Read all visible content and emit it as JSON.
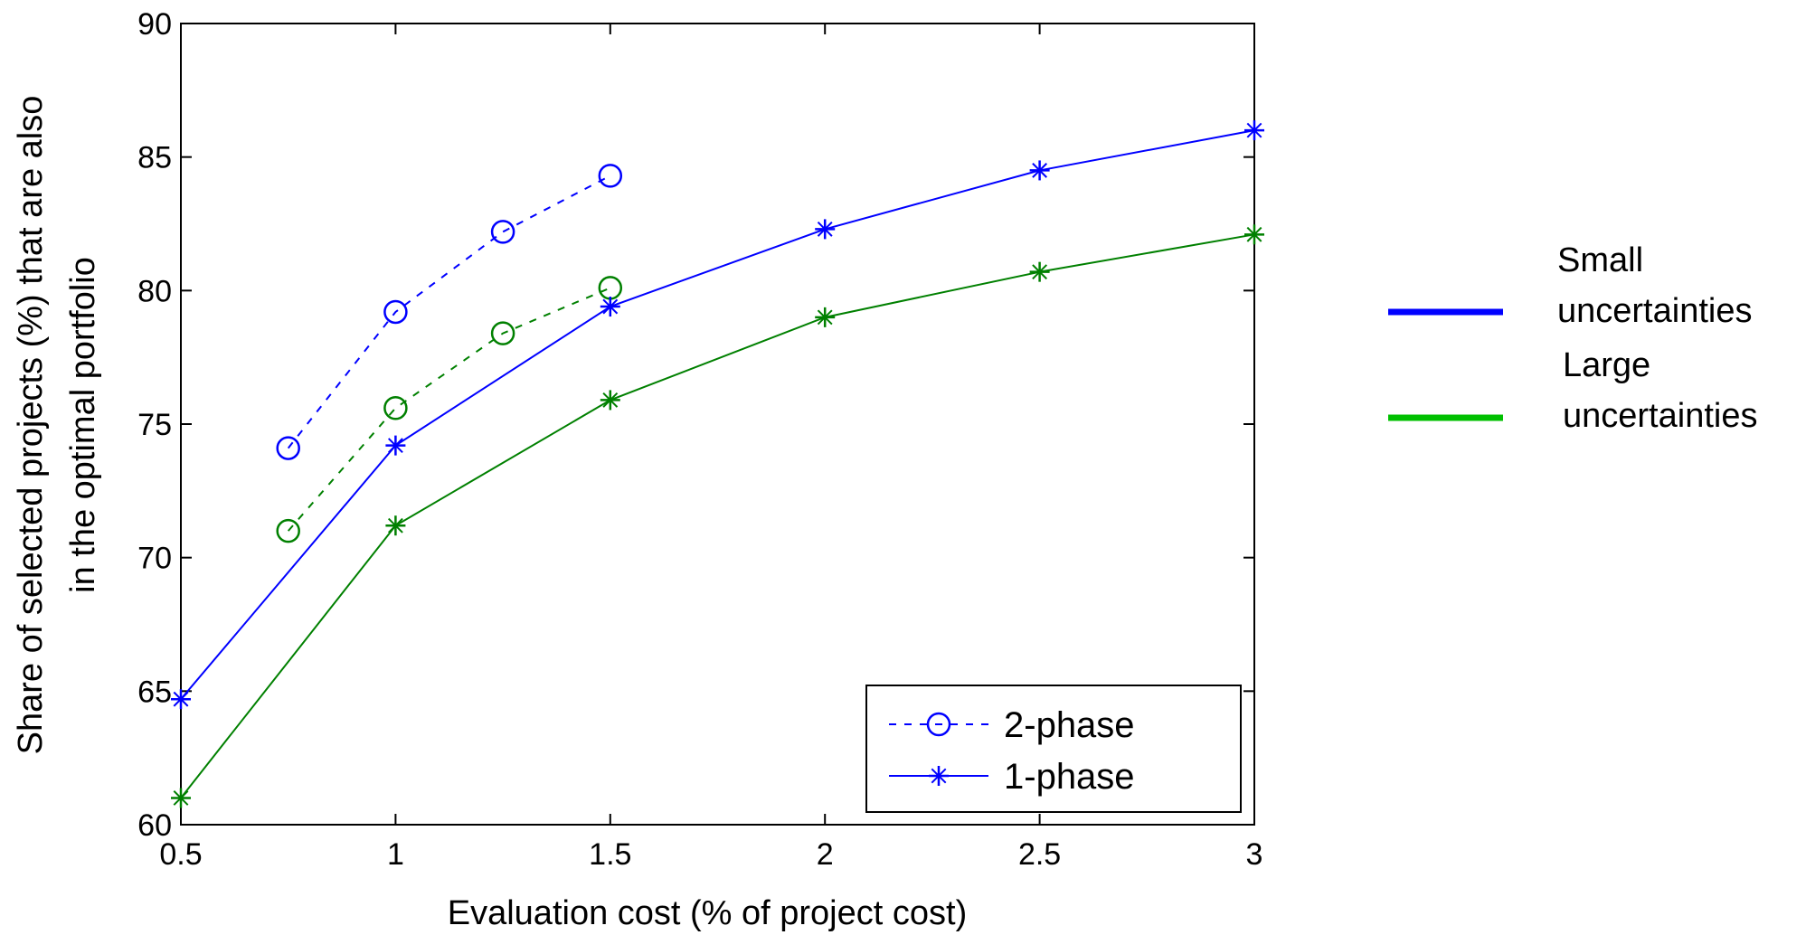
{
  "chart_data": {
    "type": "line",
    "xlabel": "Evaluation cost (% of project cost)",
    "ylabel_lines": [
      "Share of selected projects (%) that are also",
      "in the optimal portfolio"
    ],
    "xlim": [
      0.5,
      3
    ],
    "ylim": [
      60,
      90
    ],
    "xticks": [
      0.5,
      1,
      1.5,
      2,
      2.5,
      3
    ],
    "xtick_labels": [
      "0.5",
      "1",
      "1.5",
      "2",
      "2.5",
      "3"
    ],
    "yticks": [
      60,
      65,
      70,
      75,
      80,
      85,
      90
    ],
    "ytick_labels": [
      "60",
      "65",
      "70",
      "75",
      "80",
      "85",
      "90"
    ],
    "grid": false,
    "series": [
      {
        "key": "small-2phase",
        "x": [
          0.75,
          1,
          1.25,
          1.5
        ],
        "y": [
          74.1,
          79.2,
          82.2,
          84.3
        ],
        "color": "#0000ff",
        "dash": true,
        "marker": "circle"
      },
      {
        "key": "large-2phase",
        "x": [
          0.75,
          1,
          1.25,
          1.5
        ],
        "y": [
          71.0,
          75.6,
          78.4,
          80.1
        ],
        "color": "#008000",
        "dash": true,
        "marker": "circle"
      },
      {
        "key": "small-1phase",
        "x": [
          0.5,
          1,
          1.5,
          2,
          2.5,
          3
        ],
        "y": [
          64.7,
          74.2,
          79.4,
          82.3,
          84.5,
          86.0
        ],
        "color": "#0000ff",
        "dash": false,
        "marker": "star"
      },
      {
        "key": "large-1phase",
        "x": [
          0.5,
          1,
          1.5,
          2,
          2.5,
          3
        ],
        "y": [
          61.0,
          71.2,
          75.9,
          79.0,
          80.7,
          82.1
        ],
        "color": "#008000",
        "dash": false,
        "marker": "star"
      }
    ],
    "legend": {
      "placement": "bottom-right",
      "entries": [
        {
          "label": "2-phase",
          "color": "#0000ff",
          "dash": true,
          "marker": "circle"
        },
        {
          "label": "1-phase",
          "color": "#0000ff",
          "dash": false,
          "marker": "star"
        }
      ]
    },
    "side_legend": {
      "entries": [
        {
          "lines": [
            "Small",
            "uncertainties"
          ],
          "color": "#0000ff"
        },
        {
          "lines": [
            "Large",
            "uncertainties"
          ],
          "color": "#00c000"
        }
      ]
    }
  }
}
